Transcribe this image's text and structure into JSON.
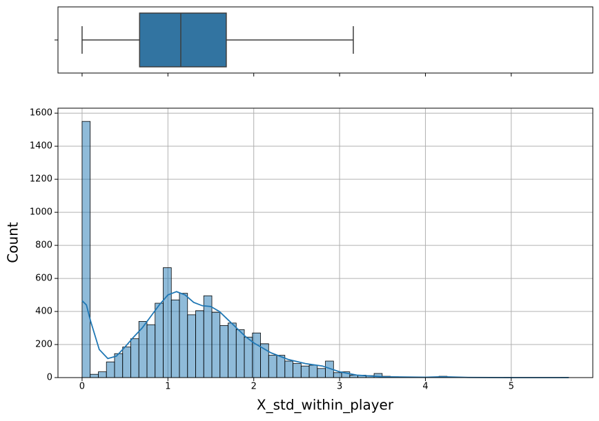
{
  "chart_data": [
    {
      "type": "box",
      "min": 0,
      "q1": 0.67,
      "median": 1.15,
      "q3": 1.68,
      "max": 3.16,
      "color": "#3274a1",
      "xlim": [
        -0.281,
        5.95
      ]
    },
    {
      "type": "histogram",
      "xlabel": "X_std_within_player",
      "ylabel": "Count",
      "color": "#1f77b4",
      "bins": [
        0,
        0.0945,
        0.189,
        0.2835,
        0.378,
        0.4725,
        0.567,
        0.6615,
        0.756,
        0.8505,
        0.945,
        1.0395,
        1.134,
        1.2285,
        1.323,
        1.4175,
        1.512,
        1.6065,
        1.701,
        1.7955,
        1.89,
        1.9845,
        2.079,
        2.1735,
        2.268,
        2.3625,
        2.457,
        2.5515,
        2.646,
        2.7405,
        2.835,
        2.9295,
        3.024,
        3.1185,
        3.213,
        3.3075,
        3.402,
        3.4965,
        3.591,
        3.6855,
        3.78,
        3.8745,
        3.969,
        4.0635,
        4.158,
        4.2525,
        4.347,
        4.4415,
        4.536,
        4.6305,
        4.725,
        4.8195,
        4.914,
        5.0085,
        5.103,
        5.1975,
        5.292,
        5.3865,
        5.481,
        5.5755,
        5.67
      ],
      "values": [
        1550,
        20,
        35,
        95,
        145,
        185,
        235,
        340,
        320,
        450,
        665,
        470,
        510,
        380,
        405,
        495,
        395,
        315,
        330,
        290,
        245,
        270,
        205,
        135,
        135,
        100,
        85,
        70,
        75,
        55,
        100,
        30,
        35,
        15,
        15,
        12,
        25,
        8,
        5,
        3,
        2,
        2,
        1,
        2,
        8,
        1,
        1,
        0,
        1,
        0,
        0,
        0,
        1,
        0,
        0,
        0,
        0,
        0,
        0,
        1
      ],
      "kde": {
        "x": [
          0,
          0.05,
          0.1,
          0.2,
          0.3,
          0.4,
          0.5,
          0.6,
          0.7,
          0.8,
          0.9,
          1.0,
          1.1,
          1.2,
          1.3,
          1.4,
          1.5,
          1.6,
          1.7,
          1.8,
          1.9,
          2.0,
          2.2,
          2.4,
          2.6,
          2.8,
          3.0,
          3.2,
          3.5,
          4.0,
          4.2,
          4.5,
          5.0,
          5.67
        ],
        "values": [
          465,
          440,
          340,
          170,
          115,
          130,
          185,
          245,
          300,
          370,
          440,
          500,
          520,
          500,
          455,
          435,
          430,
          400,
          350,
          300,
          250,
          210,
          150,
          110,
          85,
          70,
          35,
          15,
          5,
          2,
          5,
          1,
          0,
          0
        ]
      },
      "xlim": [
        -0.281,
        5.95
      ],
      "ylim": [
        0,
        1630
      ],
      "xticks": [
        0,
        1,
        2,
        3,
        4,
        5
      ],
      "yticks": [
        0,
        200,
        400,
        600,
        800,
        1000,
        1200,
        1400,
        1600
      ],
      "grid": true
    }
  ]
}
